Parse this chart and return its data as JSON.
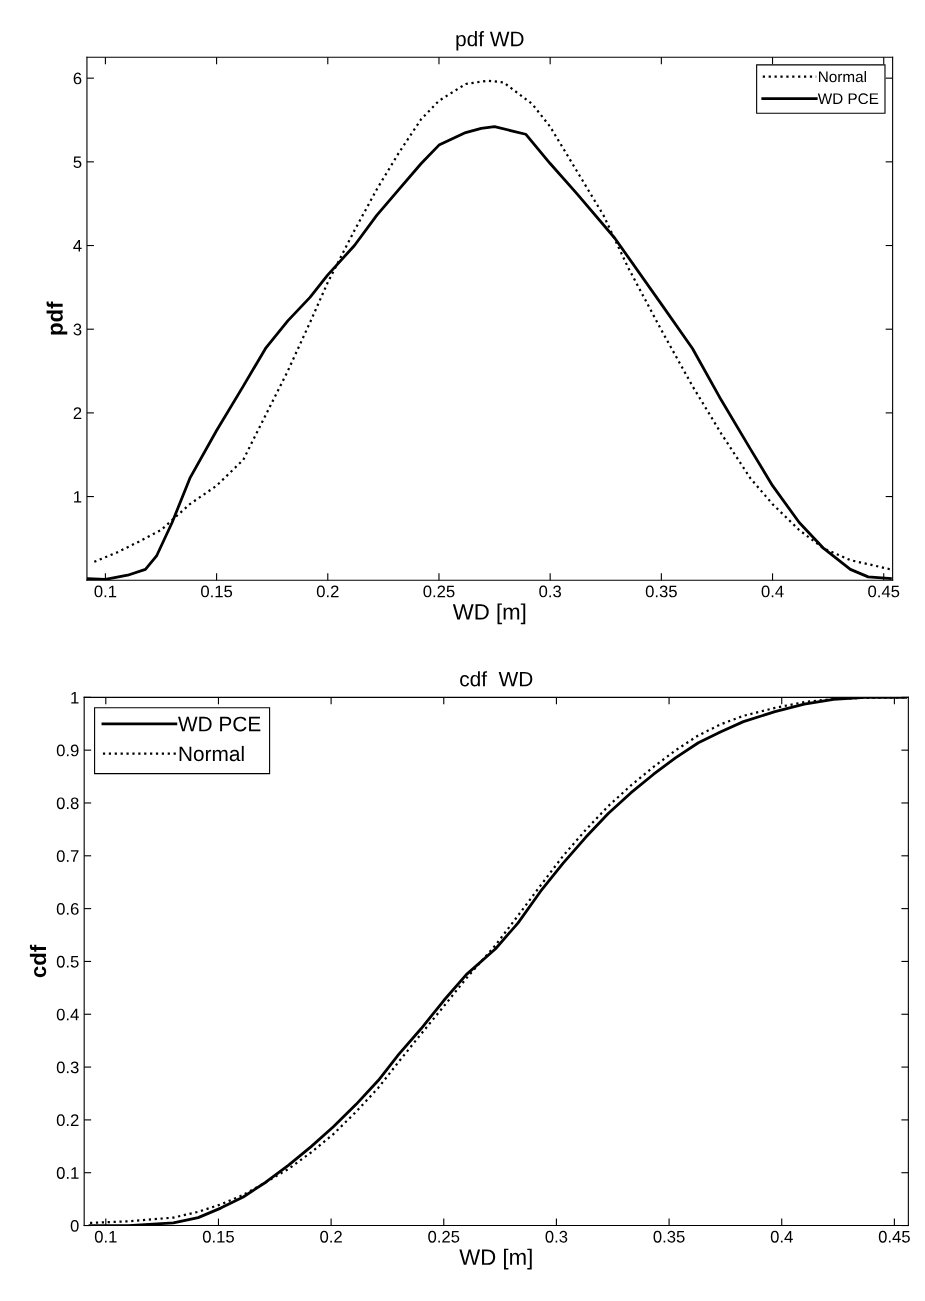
{
  "chart_data": [
    {
      "type": "line",
      "title": "pdf WD",
      "xlabel": "WD [m]",
      "ylabel": "pdf",
      "xlim": [
        0.0917,
        0.454
      ],
      "ylim": [
        0,
        6.25
      ],
      "xticks": [
        0.1,
        0.15,
        0.2,
        0.25,
        0.3,
        0.35,
        0.4,
        0.45
      ],
      "yticks": [
        1,
        2,
        3,
        4,
        5,
        6
      ],
      "grid": false,
      "legend": "top right",
      "series": [
        {
          "name": "Normal",
          "color": "#000000",
          "line_style": "dotted",
          "x": [
            0.095,
            0.105,
            0.115,
            0.125,
            0.138,
            0.15,
            0.162,
            0.172,
            0.182,
            0.192,
            0.2,
            0.212,
            0.222,
            0.232,
            0.242,
            0.25,
            0.262,
            0.272,
            0.279,
            0.292,
            0.3,
            0.312,
            0.324,
            0.335,
            0.35,
            0.364,
            0.377,
            0.39,
            0.4,
            0.412,
            0.423,
            0.435,
            0.445,
            0.453
          ],
          "values": [
            0.22,
            0.33,
            0.46,
            0.6,
            0.91,
            1.13,
            1.44,
            1.97,
            2.5,
            3.08,
            3.56,
            4.18,
            4.67,
            5.11,
            5.51,
            5.73,
            5.93,
            5.97,
            5.95,
            5.69,
            5.42,
            4.89,
            4.36,
            3.74,
            2.99,
            2.32,
            1.75,
            1.22,
            0.91,
            0.6,
            0.38,
            0.24,
            0.18,
            0.13
          ]
        },
        {
          "name": "WD PCE",
          "color": "#000000",
          "line_style": "solid",
          "x": [
            0.092,
            0.1,
            0.11,
            0.118,
            0.123,
            0.13,
            0.138,
            0.15,
            0.162,
            0.172,
            0.182,
            0.192,
            0.2,
            0.212,
            0.222,
            0.232,
            0.242,
            0.25,
            0.262,
            0.269,
            0.275,
            0.289,
            0.3,
            0.312,
            0.329,
            0.35,
            0.364,
            0.377,
            0.39,
            0.4,
            0.412,
            0.423,
            0.435,
            0.443,
            0.453
          ],
          "values": [
            0.02,
            0.01,
            0.06,
            0.13,
            0.29,
            0.69,
            1.22,
            1.79,
            2.32,
            2.77,
            3.1,
            3.38,
            3.65,
            4.0,
            4.36,
            4.67,
            4.98,
            5.2,
            5.35,
            5.4,
            5.42,
            5.33,
            4.98,
            4.62,
            4.09,
            3.3,
            2.77,
            2.15,
            1.57,
            1.13,
            0.69,
            0.38,
            0.13,
            0.04,
            0.02
          ]
        }
      ]
    },
    {
      "type": "line",
      "title": "cdf  WD",
      "xlabel": "WD [m]",
      "ylabel": "cdf",
      "xlim": [
        0.0904,
        0.4562
      ],
      "ylim": [
        0,
        1
      ],
      "xticks": [
        0.1,
        0.15,
        0.2,
        0.25,
        0.3,
        0.35,
        0.4,
        0.45
      ],
      "yticks": [
        0,
        0.1,
        0.2,
        0.3,
        0.4,
        0.5,
        0.6,
        0.7,
        0.8,
        0.9,
        1
      ],
      "grid": false,
      "legend": "top left",
      "series": [
        {
          "name": "WD PCE",
          "color": "#000000",
          "line_style": "solid",
          "x": [
            0.093,
            0.11,
            0.13,
            0.141,
            0.151,
            0.161,
            0.171,
            0.181,
            0.191,
            0.201,
            0.211,
            0.221,
            0.23,
            0.24,
            0.25,
            0.26,
            0.273,
            0.283,
            0.293,
            0.303,
            0.313,
            0.323,
            0.333,
            0.343,
            0.353,
            0.363,
            0.373,
            0.383,
            0.397,
            0.41,
            0.423,
            0.437,
            0.455
          ],
          "values": [
            0.0,
            0.0,
            0.005,
            0.015,
            0.033,
            0.054,
            0.082,
            0.114,
            0.149,
            0.187,
            0.229,
            0.275,
            0.324,
            0.373,
            0.426,
            0.475,
            0.524,
            0.573,
            0.633,
            0.686,
            0.735,
            0.78,
            0.819,
            0.854,
            0.886,
            0.914,
            0.935,
            0.954,
            0.973,
            0.987,
            0.996,
            1.0,
            1.0
          ]
        },
        {
          "name": "Normal",
          "color": "#000000",
          "line_style": "dotted",
          "x": [
            0.093,
            0.11,
            0.13,
            0.141,
            0.151,
            0.161,
            0.171,
            0.181,
            0.191,
            0.201,
            0.211,
            0.221,
            0.23,
            0.24,
            0.25,
            0.26,
            0.273,
            0.283,
            0.293,
            0.303,
            0.313,
            0.323,
            0.333,
            0.343,
            0.353,
            0.363,
            0.373,
            0.383,
            0.397,
            0.41,
            0.423,
            0.437,
            0.455
          ],
          "values": [
            0.005,
            0.008,
            0.015,
            0.026,
            0.04,
            0.058,
            0.082,
            0.107,
            0.138,
            0.173,
            0.215,
            0.261,
            0.31,
            0.363,
            0.415,
            0.468,
            0.531,
            0.587,
            0.644,
            0.7,
            0.749,
            0.794,
            0.833,
            0.868,
            0.9,
            0.928,
            0.949,
            0.965,
            0.98,
            0.991,
            0.997,
            0.999,
            1.0
          ]
        }
      ]
    }
  ]
}
